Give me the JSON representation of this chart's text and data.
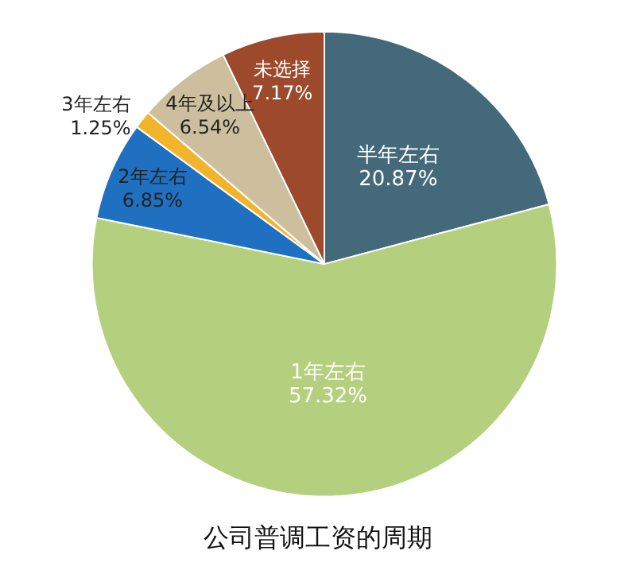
{
  "chart_data": {
    "type": "pie",
    "title": "公司普调工资的周期",
    "categories": [
      "半年左右",
      "1年左右",
      "2年左右",
      "3年左右",
      "4年及以上",
      "未选择"
    ],
    "values": [
      20.87,
      57.32,
      6.85,
      1.25,
      6.54,
      7.17
    ],
    "value_labels": [
      "20.87%",
      "57.32%",
      "6.85%",
      "1.25%",
      "6.54%",
      "7.17%"
    ],
    "colors": [
      "#44697b",
      "#b4d07e",
      "#1f70c1",
      "#f2b42a",
      "#cdbf9e",
      "#9c4a2b"
    ],
    "legend": false
  }
}
